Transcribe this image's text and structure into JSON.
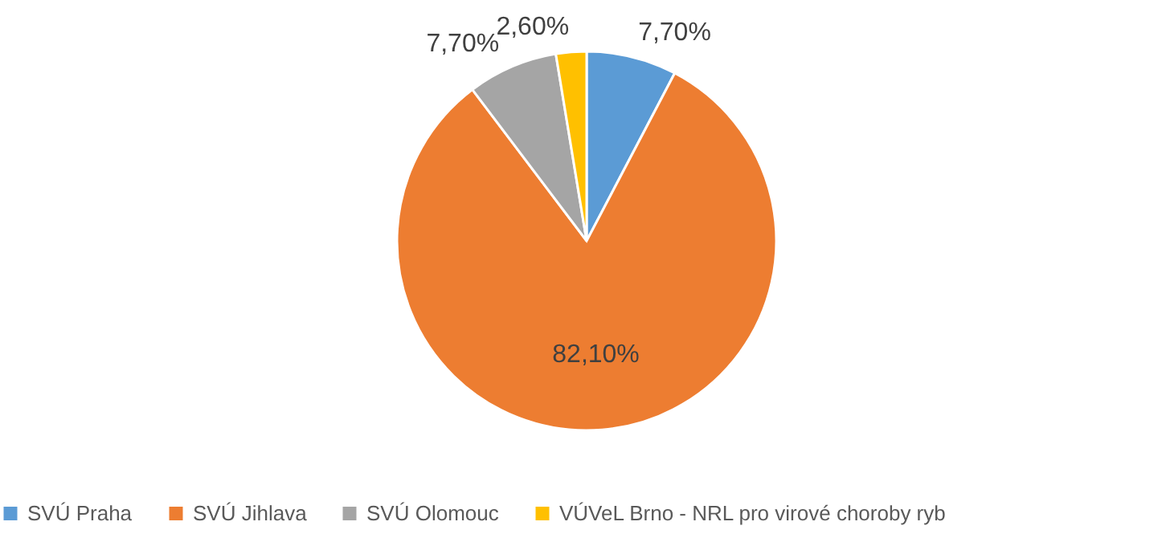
{
  "chart_data": {
    "type": "pie",
    "categories": [
      "SVÚ Praha",
      "SVÚ Jihlava",
      "SVÚ Olomouc",
      "VÚVeL Brno - NRL pro virové choroby ryb"
    ],
    "values": [
      7.7,
      82.1,
      7.7,
      2.6
    ],
    "colors": [
      "#5b9bd5",
      "#ed7d31",
      "#a5a5a5",
      "#ffc000"
    ],
    "value_labels": [
      "7,70%",
      "82,10%",
      "7,70%",
      "2,60%"
    ],
    "legend": "bottom"
  }
}
